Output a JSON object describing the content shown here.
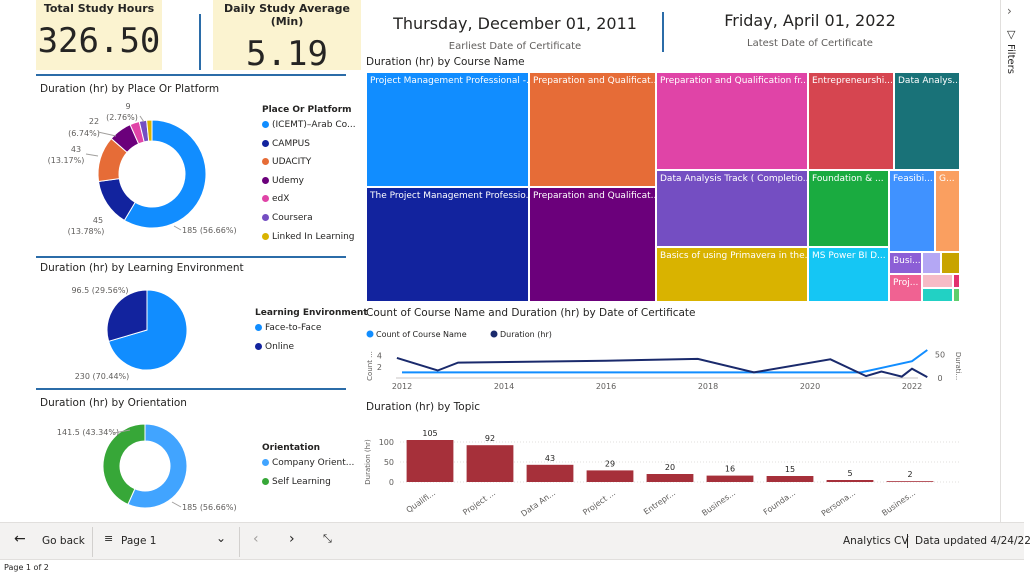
{
  "kpis": {
    "total_label": "Total Study Hours",
    "total_value": "326.50",
    "avg_label": "Daily Study Average (Min)",
    "avg_value": "5.19"
  },
  "dates": {
    "earliest_value": "Thursday, December 01, 2011",
    "earliest_label": "Earliest Date of Certificate",
    "latest_value": "Friday, April 01, 2022",
    "latest_label": "Latest Date of Certificate"
  },
  "place_chart": {
    "title": "Duration (hr) by Place Or Platform",
    "legend_title": "Place Or Platform",
    "legend": [
      {
        "label": "(ICEMT)–Arab Co...",
        "color": "#118dff"
      },
      {
        "label": "CAMPUS",
        "color": "#12239e"
      },
      {
        "label": "UDACITY",
        "color": "#e66c37"
      },
      {
        "label": "Udemy",
        "color": "#6b007b"
      },
      {
        "label": "edX",
        "color": "#e044a7"
      },
      {
        "label": "Coursera",
        "color": "#744ec2"
      },
      {
        "label": "Linked In Learning",
        "color": "#d9b300"
      }
    ],
    "labels": [
      {
        "text": "185 (56.66%)"
      },
      {
        "text": "45",
        "text2": "(13.78%)"
      },
      {
        "text": "43",
        "text2": "(13.17%)"
      },
      {
        "text": "22",
        "text2": "(6.74%)"
      },
      {
        "text": "9",
        "text2": "(2.76%)"
      }
    ]
  },
  "env_chart": {
    "title": "Duration (hr) by Learning Environment",
    "legend_title": "Learning Environment",
    "legend": [
      {
        "label": "Face-to-Face",
        "color": "#118dff"
      },
      {
        "label": "Online",
        "color": "#12239e"
      }
    ],
    "labels": [
      {
        "text": "96.5 (29.56%)"
      },
      {
        "text": "230 (70.44%)"
      }
    ]
  },
  "orient_chart": {
    "title": "Duration (hr) by Orientation",
    "legend_title": "Orientation",
    "legend": [
      {
        "label": "Company Orient...",
        "color": "#41a4ff"
      },
      {
        "label": "Self Learning",
        "color": "#37a738"
      }
    ],
    "labels": [
      {
        "text": "141.5 (43.34%)"
      },
      {
        "text": "185 (56.66%)"
      }
    ]
  },
  "treemap": {
    "title": "Duration (hr) by Course Name",
    "tiles": [
      {
        "label": "Project Management Professional -...",
        "color": "#118dff"
      },
      {
        "label": "Preparation and Qualificat...",
        "color": "#e66c37"
      },
      {
        "label": "Preparation and Qualification fr...",
        "color": "#e044a7"
      },
      {
        "label": "Entrepreneurshi...",
        "color": "#d64550"
      },
      {
        "label": "Data Analys...",
        "color": "#197278"
      },
      {
        "label": "The Project Management Professio...",
        "color": "#12239e"
      },
      {
        "label": "Preparation and Qualificat...",
        "color": "#6b007b"
      },
      {
        "label": "Data Analysis Track ( Completio...",
        "color": "#744ec2"
      },
      {
        "label": "Foundation & ...",
        "color": "#1aab40"
      },
      {
        "label": "Feasibi...",
        "color": "#4092ff"
      },
      {
        "label": "G...",
        "color": "#fa9f60"
      },
      {
        "label": "Basics of using Primavera in the...",
        "color": "#d9b300"
      },
      {
        "label": "MS Power BI D...",
        "color": "#15c6f4"
      },
      {
        "label": "Busi...",
        "color": "#8c5fd6"
      },
      {
        "label": "",
        "color": "#b4a7f4"
      },
      {
        "label": "",
        "color": "#c8a400"
      },
      {
        "label": "Proj...",
        "color": "#f06292"
      },
      {
        "label": "",
        "color": "#f6bbc6"
      },
      {
        "label": "",
        "color": "#22d1c4"
      },
      {
        "label": "",
        "color": "#e3326f"
      },
      {
        "label": "",
        "color": "#5fce6c"
      }
    ]
  },
  "line_chart_title": "Count of Course Name and Duration (hr) by Date of Certificate",
  "topic_chart_title": "Duration (hr) by Topic",
  "chart_data": [
    {
      "type": "line",
      "title": "Count of Course Name and Duration (hr) by Date of Certificate",
      "legend": "top-left",
      "series": [
        {
          "name": "Count of Course Name",
          "color": "#118dff",
          "axis": "left",
          "x": [
            2012,
            2013,
            2015,
            2017,
            2018,
            2020,
            2021,
            2021.5,
            2022,
            2022.3
          ],
          "values": [
            1,
            1,
            1,
            1,
            1,
            1,
            1,
            2,
            3,
            5
          ]
        },
        {
          "name": "Duration (hr)",
          "color": "#1a2a6c",
          "axis": "right",
          "x": [
            2011.9,
            2012.7,
            2013.1,
            2016,
            2017.8,
            2018.9,
            2020.4,
            2021.1,
            2021.4,
            2021.8,
            2022,
            2022.3
          ],
          "values": [
            43,
            16,
            33,
            37,
            41,
            12,
            40,
            4,
            14,
            3,
            20,
            2
          ]
        }
      ],
      "xlim": [
        2012,
        2022
      ],
      "xticks": [
        "2012",
        "2014",
        "2016",
        "2018",
        "2020",
        "2022"
      ],
      "ylabel": "Count ...",
      "ylim": [
        0,
        5
      ],
      "yticks": [
        "2",
        "4"
      ],
      "y2label": "Durati...",
      "y2lim": [
        0,
        60
      ],
      "y2ticks": [
        "0",
        "50"
      ]
    },
    {
      "type": "bar",
      "title": "Duration (hr) by Topic",
      "categories": [
        "Qualifi...",
        "Project ...",
        "Data An...",
        "Project ...",
        "Entrepr...",
        "Busines...",
        "Founda...",
        "Persona...",
        "Busines..."
      ],
      "values": [
        105,
        92,
        43,
        29,
        20,
        16,
        15,
        5,
        2
      ],
      "color": "#a6303a",
      "ylabel": "Duration (hr)",
      "ylim": [
        0,
        100
      ],
      "yticks": [
        "0",
        "50",
        "100"
      ]
    }
  ],
  "bottom": {
    "back_label": "Go back",
    "page_label": "Page 1",
    "report_label": "Analytics CV",
    "updated_label": "Data updated 4/24/22",
    "status": "Page 1 of 2"
  },
  "filters_label": "Filters"
}
